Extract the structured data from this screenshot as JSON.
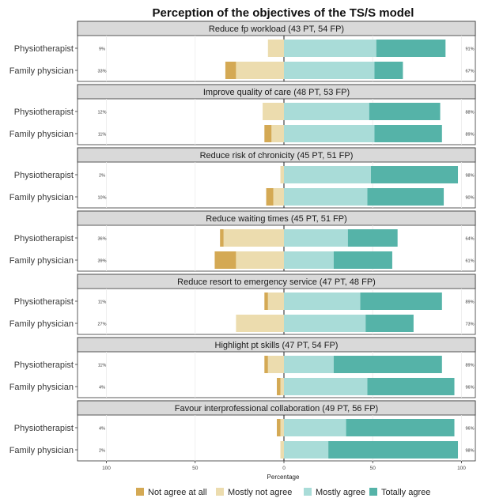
{
  "chart_data": {
    "type": "bar",
    "subtype": "diverging-stacked-likert",
    "title": "Perception of the objectives of the TS/S model",
    "xlabel": "Percentage",
    "x_ticks": [
      "100",
      "50",
      "0",
      "50",
      "100"
    ],
    "xlim": [
      -100,
      100
    ],
    "grid": true,
    "legend_position": "bottom",
    "categories": [
      "Not agree at all",
      "Mostly not agree",
      "Mostly agree",
      "Totally agree"
    ],
    "colors": {
      "not_agree_at_all": "#d4a954",
      "mostly_not_agree": "#ecdcae",
      "mostly_agree": "#a9dcd8",
      "totally_agree": "#55b3a8",
      "panel_header": "#d9d9d9",
      "gridline": "#ebebeb"
    },
    "panels": [
      {
        "title": "Reduce fp workload (43 PT, 54 FP)",
        "rows": [
          {
            "label": "Physiotherapist",
            "not_agree_at_all": 0,
            "mostly_not_agree": 9,
            "mostly_agree": 52,
            "totally_agree": 39,
            "neg_label": "9%",
            "pos_label": "91%"
          },
          {
            "label": "Family physician",
            "not_agree_at_all": 6,
            "mostly_not_agree": 27,
            "mostly_agree": 51,
            "totally_agree": 16,
            "neg_label": "33%",
            "pos_label": "67%"
          }
        ]
      },
      {
        "title": "Improve quality of care (48 PT, 53 FP)",
        "rows": [
          {
            "label": "Physiotherapist",
            "not_agree_at_all": 0,
            "mostly_not_agree": 12,
            "mostly_agree": 48,
            "totally_agree": 40,
            "neg_label": "12%",
            "pos_label": "88%"
          },
          {
            "label": "Family physician",
            "not_agree_at_all": 4,
            "mostly_not_agree": 7,
            "mostly_agree": 51,
            "totally_agree": 38,
            "neg_label": "11%",
            "pos_label": "89%"
          }
        ]
      },
      {
        "title": "Reduce risk of chronicity (45 PT, 51 FP)",
        "rows": [
          {
            "label": "Physiotherapist",
            "not_agree_at_all": 0,
            "mostly_not_agree": 2,
            "mostly_agree": 49,
            "totally_agree": 49,
            "neg_label": "2%",
            "pos_label": "98%"
          },
          {
            "label": "Family physician",
            "not_agree_at_all": 4,
            "mostly_not_agree": 6,
            "mostly_agree": 47,
            "totally_agree": 43,
            "neg_label": "10%",
            "pos_label": "90%"
          }
        ]
      },
      {
        "title": "Reduce waiting times (45 PT, 51 FP)",
        "rows": [
          {
            "label": "Physiotherapist",
            "not_agree_at_all": 2,
            "mostly_not_agree": 34,
            "mostly_agree": 36,
            "totally_agree": 28,
            "neg_label": "36%",
            "pos_label": "64%"
          },
          {
            "label": "Family physician",
            "not_agree_at_all": 12,
            "mostly_not_agree": 27,
            "mostly_agree": 28,
            "totally_agree": 33,
            "neg_label": "39%",
            "pos_label": "61%"
          }
        ]
      },
      {
        "title": "Reduce resort to emergency service (47 PT, 48 FP)",
        "rows": [
          {
            "label": "Physiotherapist",
            "not_agree_at_all": 2,
            "mostly_not_agree": 9,
            "mostly_agree": 43,
            "totally_agree": 46,
            "neg_label": "11%",
            "pos_label": "89%"
          },
          {
            "label": "Family physician",
            "not_agree_at_all": 0,
            "mostly_not_agree": 27,
            "mostly_agree": 46,
            "totally_agree": 27,
            "neg_label": "27%",
            "pos_label": "73%"
          }
        ]
      },
      {
        "title": "Highlight pt skills (47 PT, 54 FP)",
        "rows": [
          {
            "label": "Physiotherapist",
            "not_agree_at_all": 2,
            "mostly_not_agree": 9,
            "mostly_agree": 28,
            "totally_agree": 61,
            "neg_label": "11%",
            "pos_label": "89%"
          },
          {
            "label": "Family physician",
            "not_agree_at_all": 2,
            "mostly_not_agree": 2,
            "mostly_agree": 47,
            "totally_agree": 49,
            "neg_label": "4%",
            "pos_label": "96%"
          }
        ]
      },
      {
        "title": "Favour interprofessional collaboration (49 PT, 56 FP)",
        "rows": [
          {
            "label": "Physiotherapist",
            "not_agree_at_all": 2,
            "mostly_not_agree": 2,
            "mostly_agree": 35,
            "totally_agree": 61,
            "neg_label": "4%",
            "pos_label": "96%"
          },
          {
            "label": "Family physician",
            "not_agree_at_all": 0,
            "mostly_not_agree": 2,
            "mostly_agree": 25,
            "totally_agree": 73,
            "neg_label": "2%",
            "pos_label": "98%"
          }
        ]
      }
    ]
  }
}
